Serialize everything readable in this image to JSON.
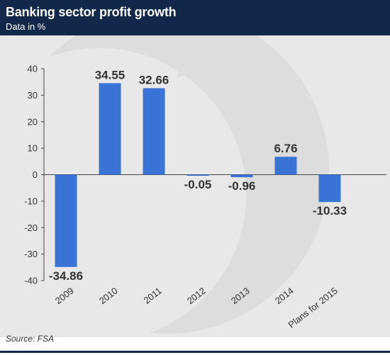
{
  "header": {
    "title": "Banking sector profit growth",
    "subtitle": "Data in %"
  },
  "footer": {
    "source": "Source: FSA"
  },
  "colors": {
    "header_bg": "#12284b",
    "plot_bg": "#e8e8e8",
    "bar": "#3a73d6",
    "text": "#333333"
  },
  "chart_data": {
    "type": "bar",
    "title": "Banking sector profit growth",
    "subtitle": "Data in %",
    "categories": [
      "2009",
      "2010",
      "2011",
      "2012",
      "2013",
      "2014",
      "Plans for 2015"
    ],
    "values": [
      -34.86,
      34.55,
      32.66,
      -0.05,
      -0.96,
      6.76,
      -10.33
    ],
    "value_labels": [
      "-34.86",
      "34.55",
      "32.66",
      "-0.05",
      "-0.96",
      "6.76",
      "-10.33"
    ],
    "yticks": [
      40,
      30,
      20,
      10,
      0,
      -10,
      -20,
      -30,
      -40
    ],
    "ytick_labels": [
      "40",
      "30",
      "20",
      "10",
      "0",
      "-10",
      "-20",
      "-30",
      "-40"
    ],
    "ylim": [
      -40,
      40
    ],
    "grid": false,
    "legend": false,
    "source": "Source: FSA"
  }
}
